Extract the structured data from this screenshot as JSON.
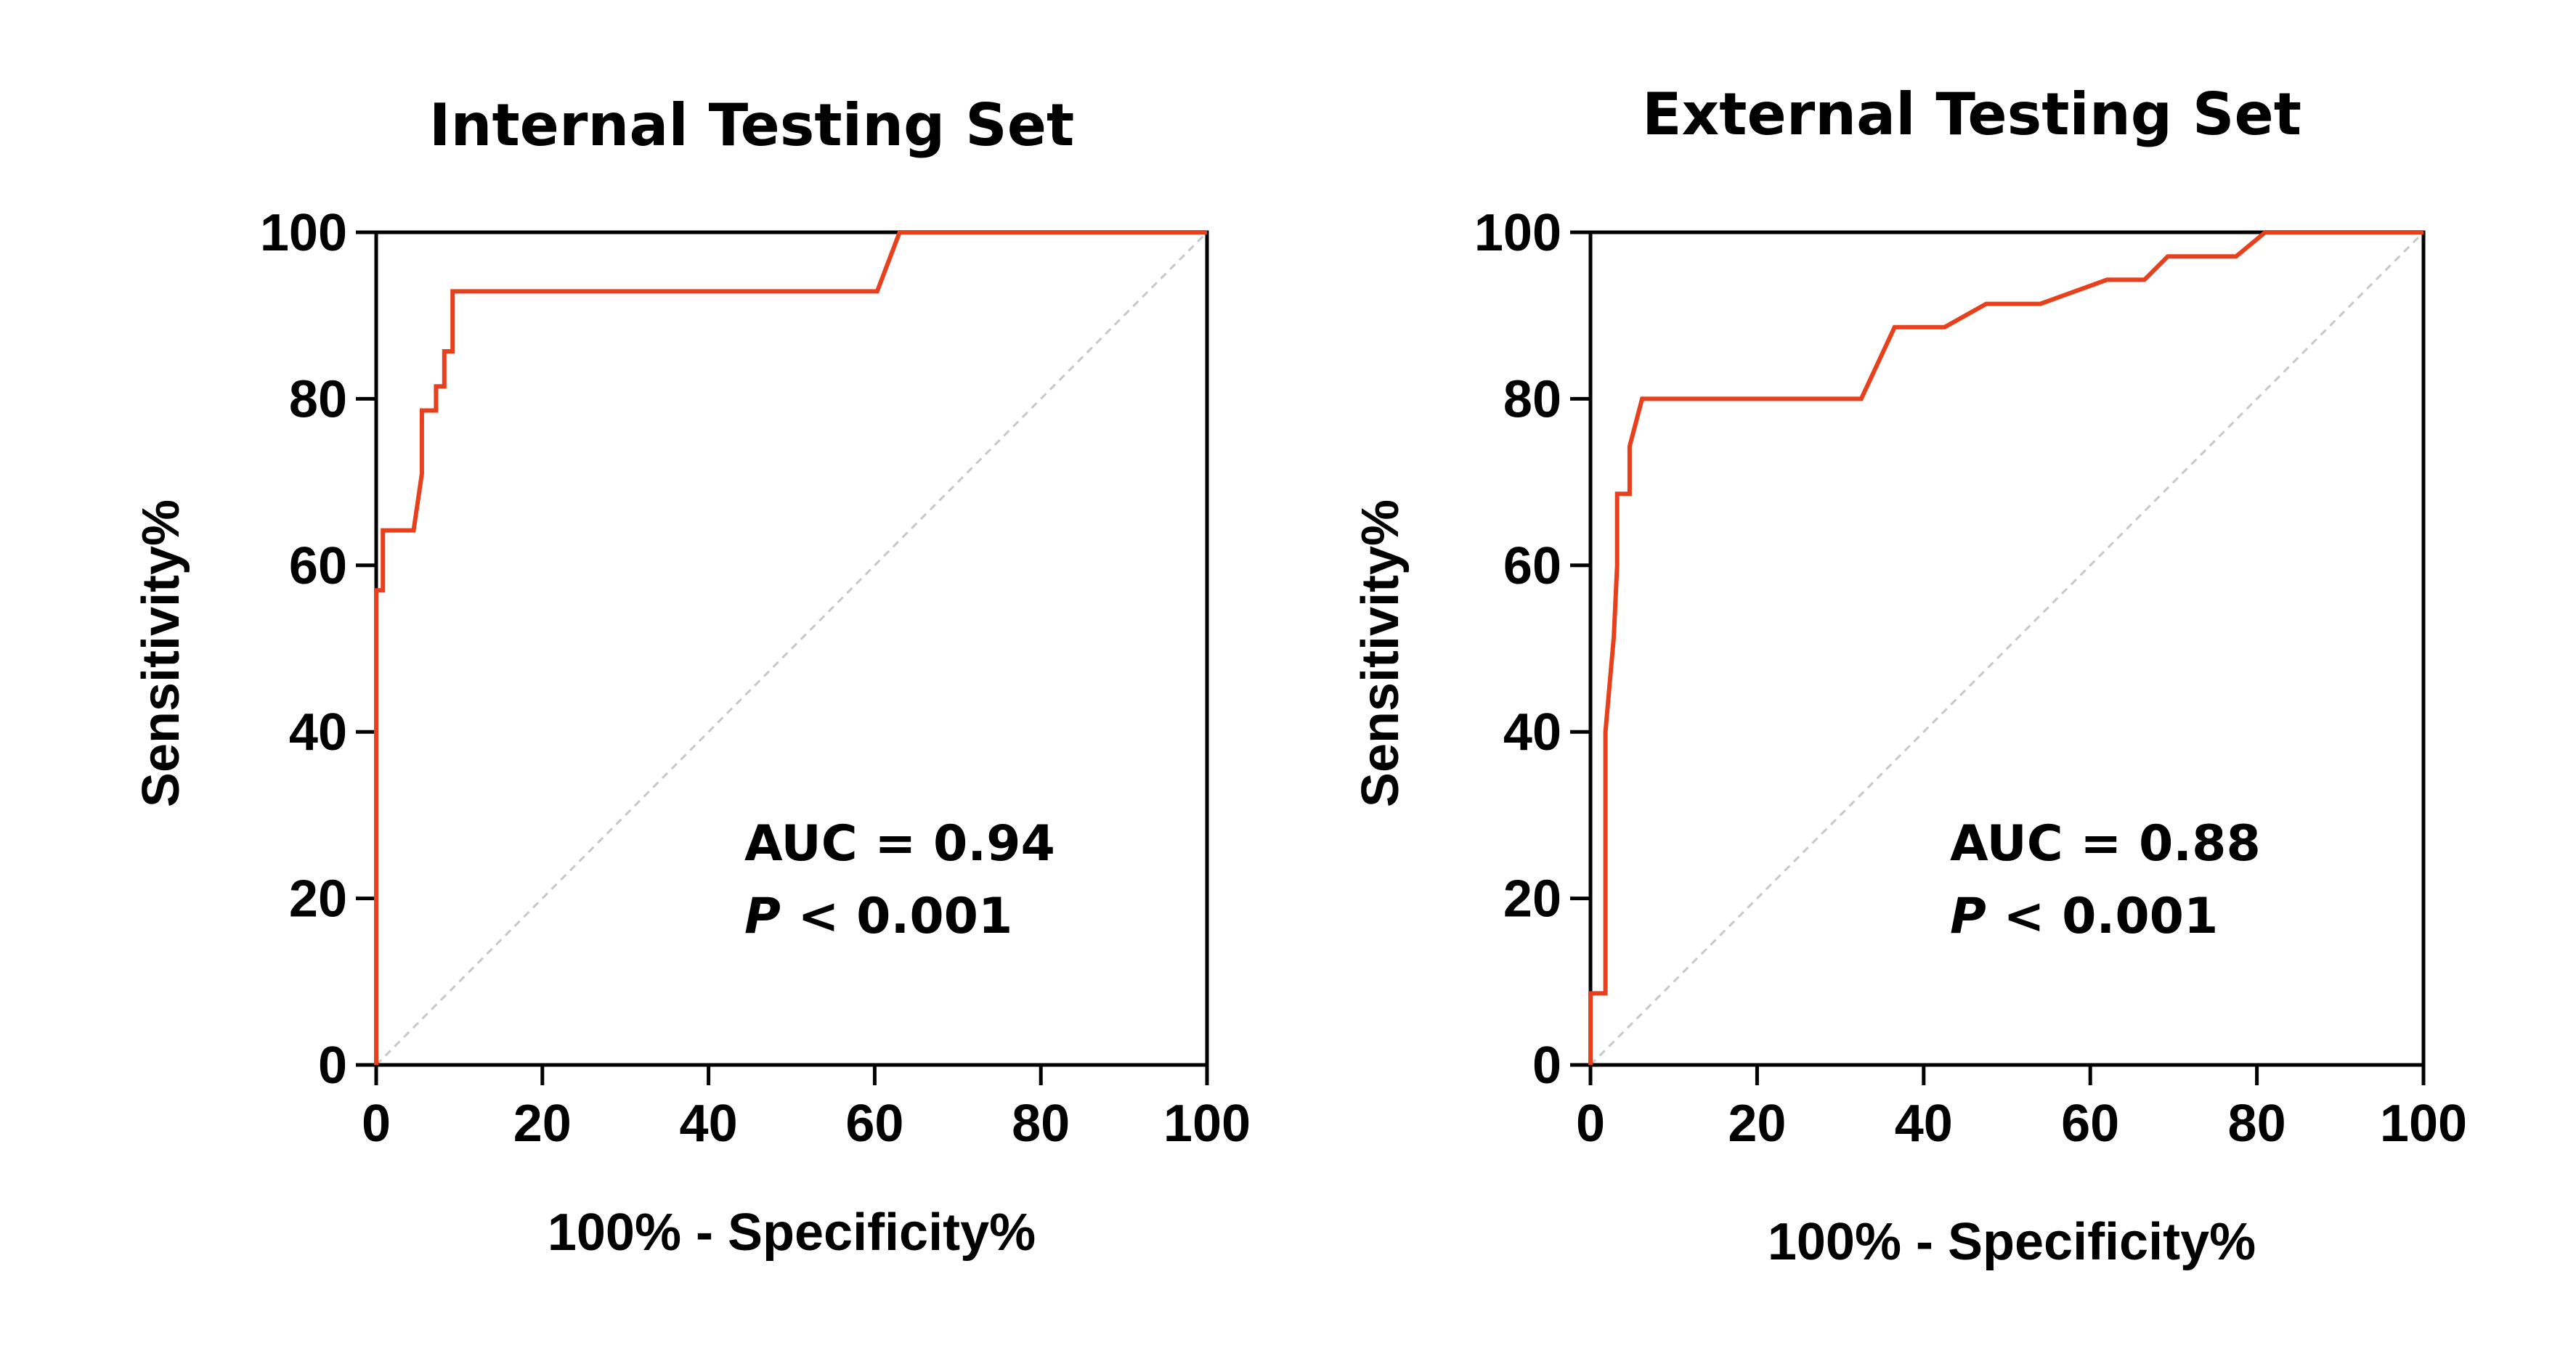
{
  "colors": {
    "curve": "#e8401c",
    "reference": "#c8c8c8",
    "axis": "#000000"
  },
  "chart_data": [
    {
      "type": "line",
      "title": "Internal Testing Set",
      "xlabel": "100% - Specificity%",
      "ylabel": "Sensitivity%",
      "xlim": [
        0,
        100
      ],
      "ylim": [
        0,
        100
      ],
      "x_ticks": [
        "0",
        "20",
        "40",
        "60",
        "80",
        "100"
      ],
      "y_ticks": [
        "0",
        "20",
        "40",
        "60",
        "80",
        "100"
      ],
      "grid": false,
      "reference_line": "diagonal",
      "annotation": {
        "auc_text": "AUC = 0.94",
        "p_symbol": "P",
        "p_text": " < 0.001"
      },
      "series": [
        {
          "x": [
            0,
            0,
            0.8,
            0.8,
            4.5,
            5.5,
            5.5,
            7.2,
            7.2,
            8.2,
            8.2,
            9.2,
            9.2,
            60.3,
            63,
            100
          ],
          "y": [
            0,
            57,
            57,
            64.2,
            64.2,
            71,
            78.6,
            78.6,
            81.5,
            81.5,
            85.7,
            85.7,
            92.9,
            92.9,
            100,
            100
          ]
        }
      ]
    },
    {
      "type": "line",
      "title": "External Testing Set",
      "xlabel": "100% - Specificity%",
      "ylabel": "Sensitivity%",
      "xlim": [
        0,
        100
      ],
      "ylim": [
        0,
        100
      ],
      "x_ticks": [
        "0",
        "20",
        "40",
        "60",
        "80",
        "100"
      ],
      "y_ticks": [
        "0",
        "20",
        "40",
        "60",
        "80",
        "100"
      ],
      "grid": false,
      "reference_line": "diagonal",
      "annotation": {
        "auc_text": "AUC = 0.88",
        "p_symbol": "P",
        "p_text": " < 0.001"
      },
      "series": [
        {
          "x": [
            0,
            0,
            1.8,
            1.8,
            2.8,
            3.2,
            3.2,
            4.7,
            4.7,
            6.2,
            32.5,
            36.5,
            42.5,
            47.5,
            54,
            62,
            66.5,
            69.3,
            77.5,
            81,
            100
          ],
          "y": [
            0,
            8.6,
            8.6,
            40,
            51.4,
            60,
            68.6,
            68.6,
            74.3,
            80,
            80,
            88.6,
            88.6,
            91.4,
            91.4,
            94.3,
            94.3,
            97.1,
            97.1,
            100,
            100
          ]
        }
      ]
    }
  ]
}
